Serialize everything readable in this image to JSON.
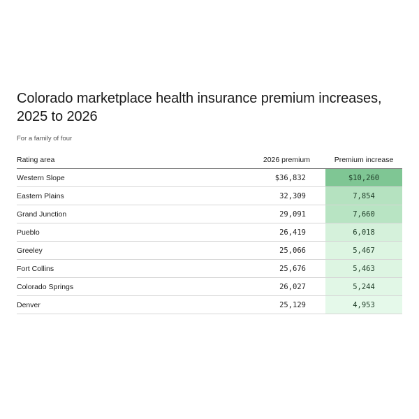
{
  "chart_data": {
    "type": "table",
    "title": "Colorado marketplace health insurance premium increases, 2025 to 2026",
    "subtitle": "For a family of four",
    "columns": [
      "Rating area",
      "2026 premium",
      "Premium increase"
    ],
    "rows": [
      {
        "area": "Western Slope",
        "premium": "$36,832",
        "increase": "$10,260",
        "increase_value": 10260,
        "color": "#7fc694"
      },
      {
        "area": "Eastern Plains",
        "premium": "32,309",
        "increase": "7,854",
        "increase_value": 7854,
        "color": "#b5e2c0"
      },
      {
        "area": "Grand Junction",
        "premium": "29,091",
        "increase": "7,660",
        "increase_value": 7660,
        "color": "#b8e4c3"
      },
      {
        "area": "Pueblo",
        "premium": "26,419",
        "increase": "6,018",
        "increase_value": 6018,
        "color": "#d5f1db"
      },
      {
        "area": "Greeley",
        "premium": "25,066",
        "increase": "5,467",
        "increase_value": 5467,
        "color": "#ddf5e2"
      },
      {
        "area": "Fort Collins",
        "premium": "25,676",
        "increase": "5,463",
        "increase_value": 5463,
        "color": "#ddf5e2"
      },
      {
        "area": "Colorado Springs",
        "premium": "26,027",
        "increase": "5,244",
        "increase_value": 5244,
        "color": "#e1f7e6"
      },
      {
        "area": "Denver",
        "premium": "25,129",
        "increase": "4,953",
        "increase_value": 4953,
        "color": "#e5f9ea"
      }
    ]
  }
}
